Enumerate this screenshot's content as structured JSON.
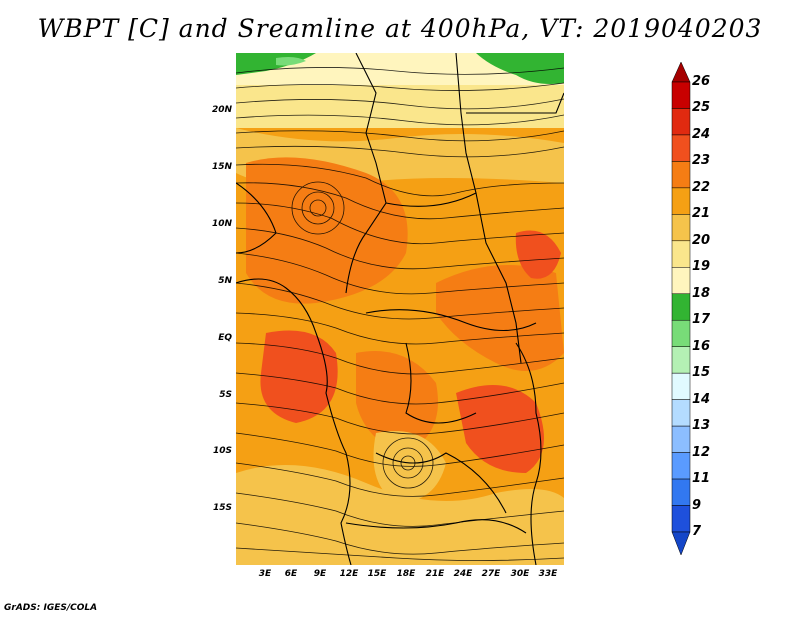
{
  "title": "WBPT [C] and Sreamline at 400hPa, VT: 2019040203",
  "footer": "GrADS: IGES/COLA",
  "lat_labels": [
    "20N",
    "15N",
    "10N",
    "5N",
    "EQ",
    "5S",
    "10S",
    "15S"
  ],
  "lon_labels": [
    "3E",
    "6E",
    "9E",
    "12E",
    "15E",
    "18E",
    "21E",
    "24E",
    "27E",
    "30E",
    "33E"
  ],
  "colorbar": {
    "labels": [
      "26",
      "25",
      "24",
      "23",
      "22",
      "21",
      "20",
      "19",
      "18",
      "17",
      "16",
      "15",
      "14",
      "13",
      "12",
      "11",
      "9",
      "7"
    ],
    "colors": [
      "#a50000",
      "#c80000",
      "#e12a10",
      "#f0501e",
      "#f57d14",
      "#f5a014",
      "#f5c34b",
      "#fae68c",
      "#fff5be",
      "#32b432",
      "#78dc78",
      "#b4f0b4",
      "#e1faff",
      "#b4dcff",
      "#8cbeff",
      "#5a9bff",
      "#3278f0",
      "#1e50dc",
      "#1446c8"
    ]
  },
  "map_colors": {
    "c26": "#e04a10",
    "c22": "#f57d14",
    "c21": "#f5a014",
    "c20": "#f5c34b",
    "c19": "#fae68c",
    "c18": "#fff5be",
    "c17": "#32b432"
  }
}
